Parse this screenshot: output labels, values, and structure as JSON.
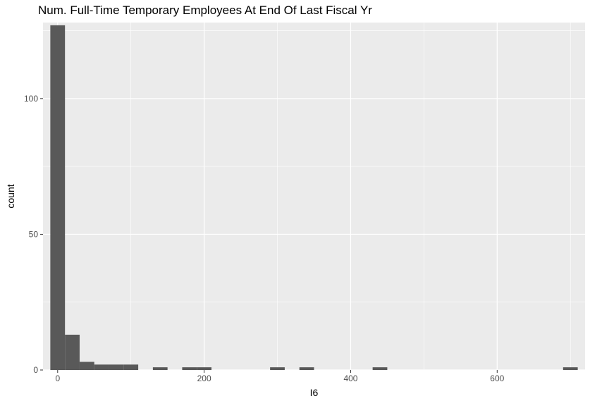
{
  "chart_data": {
    "type": "bar",
    "title": "Num. Full-Time Temporary Employees At End Of Last Fiscal Yr",
    "xlabel": "I6",
    "ylabel": "count",
    "xlim": [
      -20,
      720
    ],
    "ylim": [
      0,
      128
    ],
    "x_ticks": [
      0,
      200,
      400,
      600
    ],
    "y_ticks": [
      0,
      50,
      100
    ],
    "bin_width": 20,
    "bins": [
      {
        "x0": -10,
        "x1": 10,
        "count": 127
      },
      {
        "x0": 10,
        "x1": 30,
        "count": 13
      },
      {
        "x0": 30,
        "x1": 50,
        "count": 3
      },
      {
        "x0": 50,
        "x1": 70,
        "count": 2
      },
      {
        "x0": 70,
        "x1": 90,
        "count": 2
      },
      {
        "x0": 90,
        "x1": 110,
        "count": 2
      },
      {
        "x0": 130,
        "x1": 150,
        "count": 1
      },
      {
        "x0": 170,
        "x1": 190,
        "count": 1
      },
      {
        "x0": 190,
        "x1": 210,
        "count": 1
      },
      {
        "x0": 290,
        "x1": 310,
        "count": 1
      },
      {
        "x0": 330,
        "x1": 350,
        "count": 1
      },
      {
        "x0": 430,
        "x1": 450,
        "count": 1
      },
      {
        "x0": 690,
        "x1": 710,
        "count": 1
      }
    ],
    "grid": true,
    "colors": {
      "bar": "#595959",
      "panel": "#ebebeb",
      "grid": "#ffffff"
    }
  }
}
